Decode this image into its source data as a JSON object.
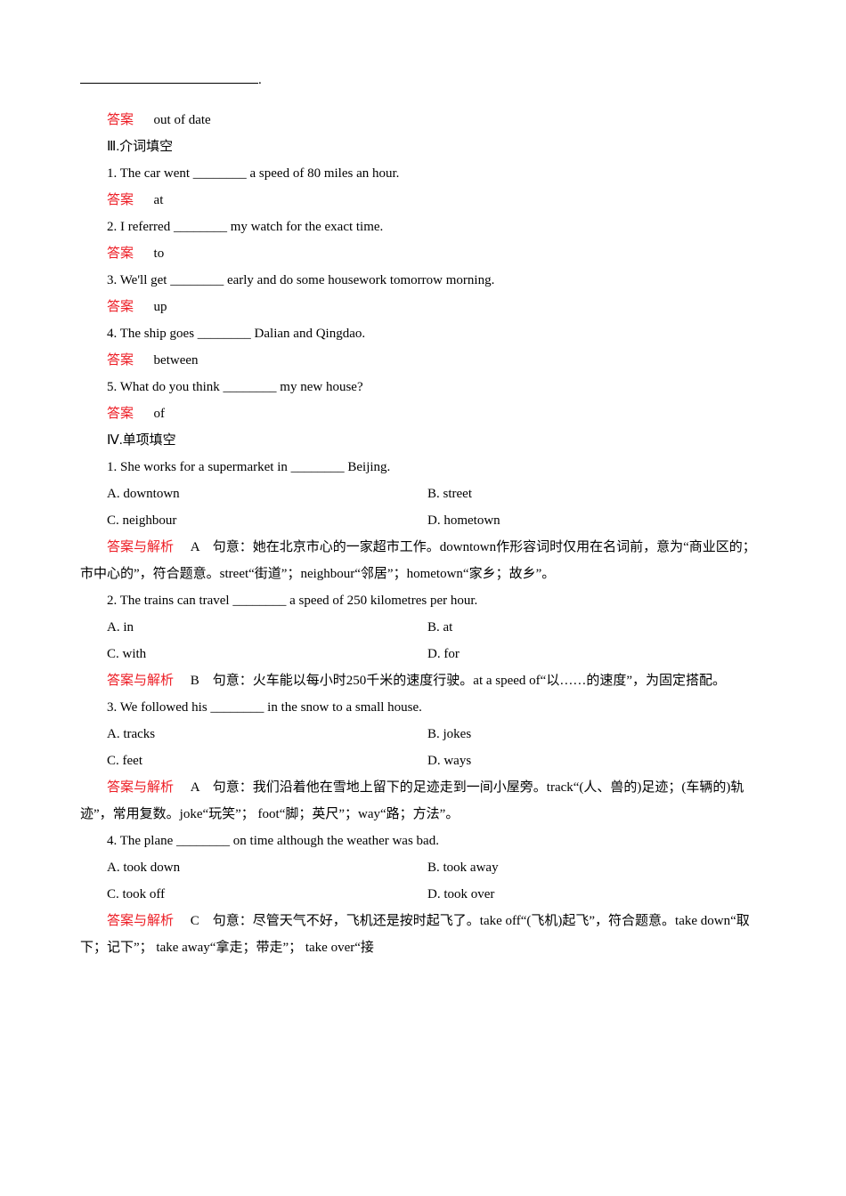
{
  "blank_terminator": ".",
  "ans1": {
    "label": "答案",
    "text": "out of date"
  },
  "sec3": {
    "title": "Ⅲ.介词填空"
  },
  "q3_1": {
    "text": "1. The car went ________ a speed of 80 miles an hour."
  },
  "a3_1": {
    "label": "答案",
    "text": "at"
  },
  "q3_2": {
    "text": "2. I referred ________ my watch for the exact time."
  },
  "a3_2": {
    "label": "答案",
    "text": "to"
  },
  "q3_3": {
    "text": "3. We'll get ________ early and do some housework tomorrow morning."
  },
  "a3_3": {
    "label": "答案",
    "text": "up"
  },
  "q3_4": {
    "text": "4. The ship goes ________ Dalian and Qingdao."
  },
  "a3_4": {
    "label": "答案",
    "text": "between"
  },
  "q3_5": {
    "text": "5. What do you think ________ my new house?"
  },
  "a3_5": {
    "label": "答案",
    "text": "of"
  },
  "sec4": {
    "title": "Ⅳ.单项填空"
  },
  "q4_1": {
    "stem": "1. She works for a supermarket in ________ Beijing.",
    "A": "A. downtown",
    "B": "B. street",
    "C": "C. neighbour",
    "D": "D. hometown",
    "ans_label": "答案与解析",
    "ans": "A　句意：她在北京市心的一家超市工作。downtown作形容词时仅用在名词前，意为“商业区的；市中心的”，符合题意。street“街道”；neighbour“邻居”；hometown“家乡；故乡”。"
  },
  "q4_2": {
    "stem": "2. The trains can travel ________ a speed of 250 kilometres per hour.",
    "A": "A. in",
    "B": "B. at",
    "C": "C. with",
    "D": "D. for",
    "ans_label": "答案与解析",
    "ans": "B　句意：火车能以每小时250千米的速度行驶。at a speed of“以……的速度”，为固定搭配。"
  },
  "q4_3": {
    "stem": "3. We followed his ________ in the snow to a small house.",
    "A": "A. tracks",
    "B": "B. jokes",
    "C": "C. feet",
    "D": "D. ways",
    "ans_label": "答案与解析",
    "ans": "A　句意：我们沿着他在雪地上留下的足迹走到一间小屋旁。track“(人、兽的)足迹；(车辆的)轨迹”，常用复数。joke“玩笑”； foot“脚；英尺”；way“路；方法”。"
  },
  "q4_4": {
    "stem": "4. The plane ________ on time although the weather was bad.",
    "A": "A. took down",
    "B": "B. took away",
    "C": "C. took off",
    "D": "D. took over",
    "ans_label": "答案与解析",
    "ans": "C　句意：尽管天气不好，飞机还是按时起飞了。take off“(飞机)起飞”，符合题意。take down“取下；记下”； take away“拿走；带走”； take over“接"
  }
}
